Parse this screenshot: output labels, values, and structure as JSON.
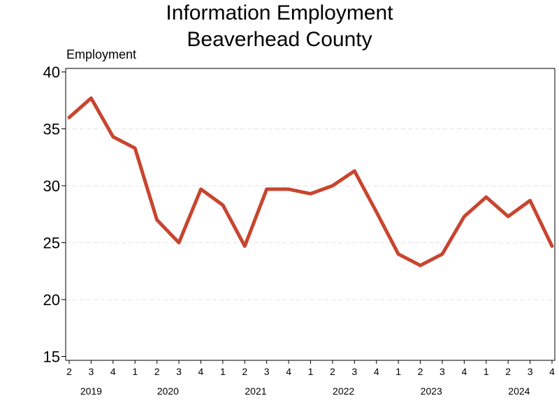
{
  "chart_data": {
    "type": "line",
    "title": "Information Employment",
    "subtitle": "Beaverhead County",
    "ylabel": "Employment",
    "xlabel": "",
    "ylim": [
      15,
      40
    ],
    "yticks": [
      15,
      20,
      25,
      30,
      35,
      40
    ],
    "grid": "horizontal dashed",
    "x": [
      {
        "year": "2019",
        "quarter": "2"
      },
      {
        "year": "2019",
        "quarter": "3"
      },
      {
        "year": "2019",
        "quarter": "4"
      },
      {
        "year": "2020",
        "quarter": "1"
      },
      {
        "year": "2020",
        "quarter": "2"
      },
      {
        "year": "2020",
        "quarter": "3"
      },
      {
        "year": "2020",
        "quarter": "4"
      },
      {
        "year": "2021",
        "quarter": "1"
      },
      {
        "year": "2021",
        "quarter": "2"
      },
      {
        "year": "2021",
        "quarter": "3"
      },
      {
        "year": "2021",
        "quarter": "4"
      },
      {
        "year": "2022",
        "quarter": "1"
      },
      {
        "year": "2022",
        "quarter": "2"
      },
      {
        "year": "2022",
        "quarter": "3"
      },
      {
        "year": "2022",
        "quarter": "4"
      },
      {
        "year": "2023",
        "quarter": "1"
      },
      {
        "year": "2023",
        "quarter": "2"
      },
      {
        "year": "2023",
        "quarter": "3"
      },
      {
        "year": "2023",
        "quarter": "4"
      },
      {
        "year": "2024",
        "quarter": "1"
      },
      {
        "year": "2024",
        "quarter": "2"
      },
      {
        "year": "2024",
        "quarter": "3"
      },
      {
        "year": "2024",
        "quarter": "4"
      }
    ],
    "years": [
      "2019",
      "2020",
      "2021",
      "2022",
      "2023",
      "2024"
    ],
    "series": [
      {
        "values": [
          36.0,
          37.7,
          34.3,
          33.3,
          27.0,
          25.0,
          29.7,
          28.3,
          24.7,
          29.7,
          29.7,
          29.3,
          30.0,
          31.3,
          27.7,
          24.0,
          23.0,
          24.0,
          27.3,
          29.0,
          27.3,
          28.7,
          24.7
        ],
        "color": "#c8452f"
      }
    ]
  }
}
